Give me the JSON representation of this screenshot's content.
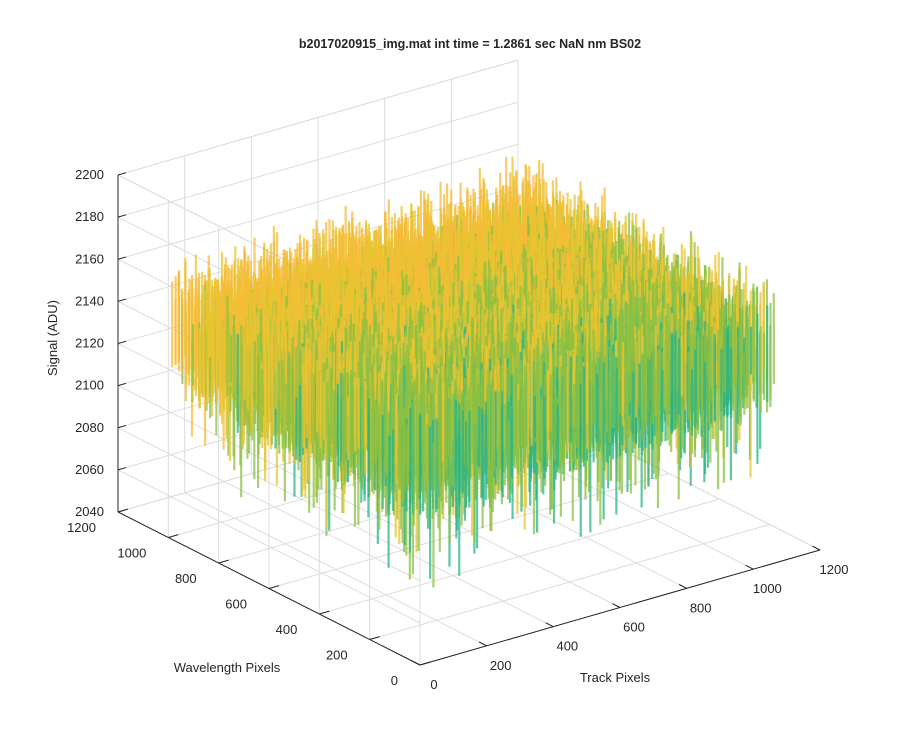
{
  "chart_data": {
    "type": "surface",
    "title": "b2017020915_img.mat int time = 1.2861 sec  NaN nm BS02",
    "xlabel": "Track Pixels",
    "ylabel": "Wavelength Pixels",
    "zlabel": "Signal (ADU)",
    "xlim": [
      0,
      1200
    ],
    "ylim": [
      0,
      1200
    ],
    "zlim": [
      2040,
      2200
    ],
    "x_ticks": [
      "0",
      "200",
      "400",
      "600",
      "800",
      "1000",
      "1200"
    ],
    "y_ticks": [
      "0",
      "200",
      "400",
      "600",
      "800",
      "1000",
      "1200"
    ],
    "z_ticks": [
      "2040",
      "2060",
      "2080",
      "2100",
      "2120",
      "2140",
      "2160",
      "2180",
      "2200"
    ],
    "grid": true,
    "colormap": "parula",
    "colors": [
      "#3a8fd6",
      "#14b1b6",
      "#2bb487",
      "#8cc043",
      "#e8c431",
      "#f8b93a"
    ],
    "surface_description_values": {
      "mean_signal": 2125,
      "noise_amplitude": 20
    }
  }
}
